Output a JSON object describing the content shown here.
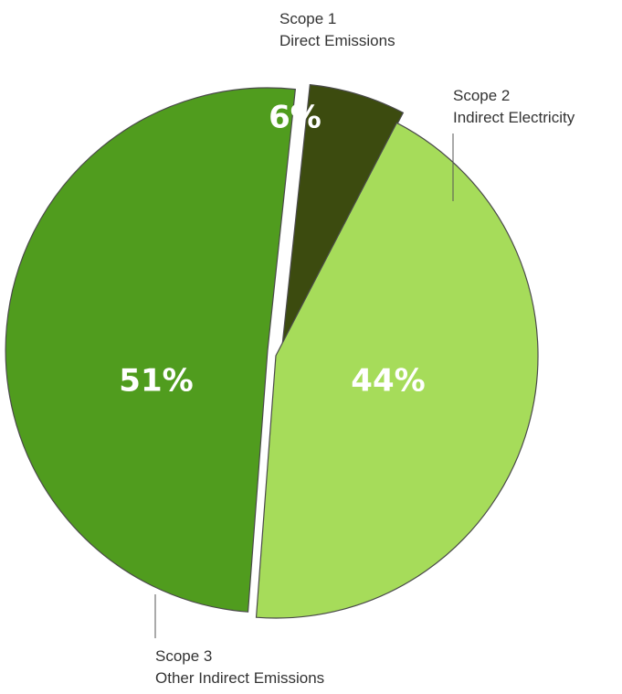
{
  "chart_data": {
    "type": "pie",
    "exploded": true,
    "legend": "none",
    "slices": [
      {
        "label_line1": "Scope 1",
        "label_line2": "Direct Emissions",
        "value": 6,
        "value_label": "6%",
        "color": "#3c4b0f"
      },
      {
        "label_line1": "Scope 2",
        "label_line2": "Indirect Electricity",
        "value": 44,
        "value_label": "44%",
        "color": "#a6dc5a"
      },
      {
        "label_line1": "Scope 3",
        "label_line2": "Other Indirect Emissions",
        "value": 51,
        "value_label": "51%",
        "color": "#509c1e"
      }
    ]
  }
}
